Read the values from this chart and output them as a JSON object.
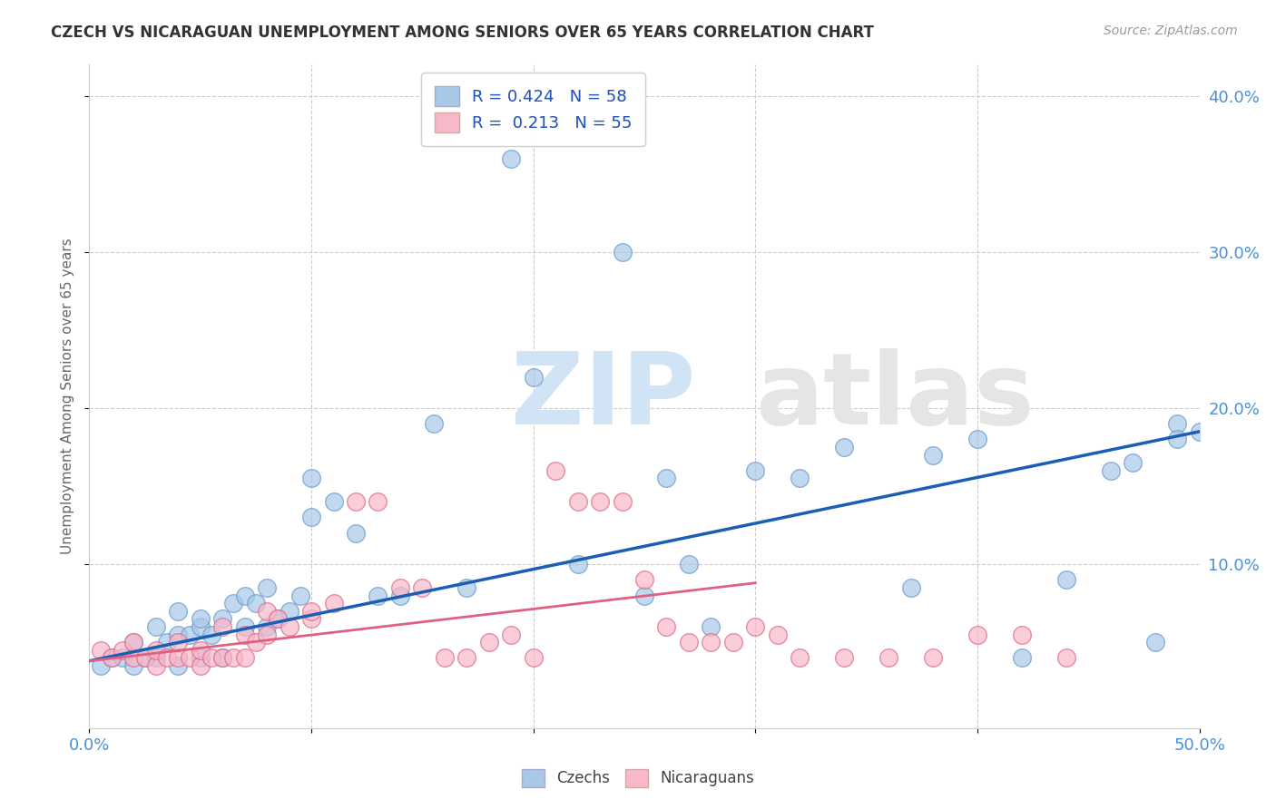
{
  "title": "CZECH VS NICARAGUAN UNEMPLOYMENT AMONG SENIORS OVER 65 YEARS CORRELATION CHART",
  "source": "Source: ZipAtlas.com",
  "ylabel": "Unemployment Among Seniors over 65 years",
  "xlim": [
    0.0,
    0.5
  ],
  "ylim": [
    -0.005,
    0.42
  ],
  "xticks": [
    0.0,
    0.1,
    0.2,
    0.3,
    0.4,
    0.5
  ],
  "xticklabels_shown": [
    "0.0%",
    "",
    "",
    "",
    "",
    "50.0%"
  ],
  "yticks": [
    0.1,
    0.2,
    0.3,
    0.4
  ],
  "yticklabels": [
    "10.0%",
    "20.0%",
    "30.0%",
    "40.0%"
  ],
  "czech_color": "#a8c8e8",
  "nicaraguan_color": "#f8b8c8",
  "czech_line_color": "#1a5fb4",
  "nicaraguan_line_color": "#e06080",
  "legend_r_czech": "0.424",
  "legend_n_czech": "58",
  "legend_r_nicaraguan": "0.213",
  "legend_n_nicaraguan": "55",
  "czech_scatter_x": [
    0.005,
    0.01,
    0.015,
    0.02,
    0.02,
    0.025,
    0.03,
    0.03,
    0.035,
    0.04,
    0.04,
    0.04,
    0.045,
    0.05,
    0.05,
    0.05,
    0.055,
    0.06,
    0.06,
    0.065,
    0.07,
    0.07,
    0.075,
    0.08,
    0.08,
    0.085,
    0.09,
    0.095,
    0.1,
    0.1,
    0.11,
    0.12,
    0.13,
    0.14,
    0.155,
    0.17,
    0.19,
    0.2,
    0.22,
    0.24,
    0.25,
    0.26,
    0.27,
    0.28,
    0.3,
    0.32,
    0.34,
    0.37,
    0.38,
    0.4,
    0.42,
    0.44,
    0.46,
    0.47,
    0.48,
    0.49,
    0.49,
    0.5
  ],
  "czech_scatter_y": [
    0.035,
    0.04,
    0.04,
    0.035,
    0.05,
    0.04,
    0.04,
    0.06,
    0.05,
    0.035,
    0.055,
    0.07,
    0.055,
    0.04,
    0.06,
    0.065,
    0.055,
    0.04,
    0.065,
    0.075,
    0.06,
    0.08,
    0.075,
    0.06,
    0.085,
    0.065,
    0.07,
    0.08,
    0.13,
    0.155,
    0.14,
    0.12,
    0.08,
    0.08,
    0.19,
    0.085,
    0.36,
    0.22,
    0.1,
    0.3,
    0.08,
    0.155,
    0.1,
    0.06,
    0.16,
    0.155,
    0.175,
    0.085,
    0.17,
    0.18,
    0.04,
    0.09,
    0.16,
    0.165,
    0.05,
    0.19,
    0.18,
    0.185
  ],
  "nicaraguan_scatter_x": [
    0.005,
    0.01,
    0.015,
    0.02,
    0.02,
    0.025,
    0.03,
    0.03,
    0.035,
    0.04,
    0.04,
    0.045,
    0.05,
    0.05,
    0.055,
    0.06,
    0.06,
    0.065,
    0.07,
    0.07,
    0.075,
    0.08,
    0.08,
    0.085,
    0.09,
    0.1,
    0.1,
    0.11,
    0.12,
    0.13,
    0.14,
    0.15,
    0.16,
    0.17,
    0.18,
    0.19,
    0.2,
    0.21,
    0.22,
    0.23,
    0.24,
    0.25,
    0.26,
    0.27,
    0.28,
    0.29,
    0.3,
    0.31,
    0.32,
    0.34,
    0.36,
    0.38,
    0.4,
    0.42,
    0.44
  ],
  "nicaraguan_scatter_y": [
    0.045,
    0.04,
    0.045,
    0.04,
    0.05,
    0.04,
    0.035,
    0.045,
    0.04,
    0.04,
    0.05,
    0.04,
    0.035,
    0.045,
    0.04,
    0.04,
    0.06,
    0.04,
    0.04,
    0.055,
    0.05,
    0.055,
    0.07,
    0.065,
    0.06,
    0.065,
    0.07,
    0.075,
    0.14,
    0.14,
    0.085,
    0.085,
    0.04,
    0.04,
    0.05,
    0.055,
    0.04,
    0.16,
    0.14,
    0.14,
    0.14,
    0.09,
    0.06,
    0.05,
    0.05,
    0.05,
    0.06,
    0.055,
    0.04,
    0.04,
    0.04,
    0.04,
    0.055,
    0.055,
    0.04
  ],
  "czech_trend_x": [
    0.0,
    0.5
  ],
  "czech_trend_y": [
    0.038,
    0.185
  ],
  "nicaraguan_trend_x": [
    0.0,
    0.3
  ],
  "nicaraguan_trend_y": [
    0.038,
    0.088
  ],
  "grid_color": "#cccccc",
  "spine_color": "#cccccc",
  "tick_color": "#4a90d9",
  "ylabel_color": "#666666",
  "title_color": "#333333",
  "source_color": "#999999",
  "watermark_zip_color": "#d0e4f5",
  "watermark_atlas_color": "#e5e5e5"
}
